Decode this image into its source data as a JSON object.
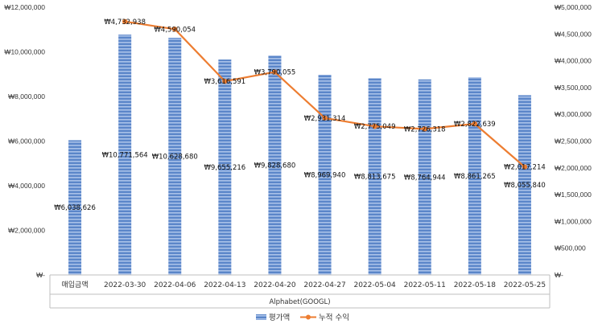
{
  "chart_data": {
    "type": "bar",
    "subtitle": "Alphabet(GOOGL)",
    "categories": [
      "매입금액",
      "2022-03-30",
      "2022-04-06",
      "2022-04-13",
      "2022-04-20",
      "2022-04-27",
      "2022-05-04",
      "2022-05-11",
      "2022-05-18",
      "2022-05-25"
    ],
    "series": [
      {
        "name": "평가액",
        "type": "bar",
        "axis": "left",
        "color": "#5b86c9",
        "values": [
          6038626,
          10771564,
          10628680,
          9655216,
          9828680,
          8969940,
          8813675,
          8764944,
          8861265,
          8055840
        ],
        "labels": [
          "₩6,038,626",
          "₩10,771,564",
          "₩10,628,680",
          "₩9,655,216",
          "₩9,828,680",
          "₩8,969,940",
          "₩8,813,675",
          "₩8,764,944",
          "₩8,861,265",
          "₩8,055,840"
        ]
      },
      {
        "name": "누적 수익",
        "type": "line",
        "axis": "right",
        "color": "#ed7d31",
        "values": [
          null,
          4732938,
          4590054,
          3616591,
          3790055,
          2931314,
          2775049,
          2726318,
          2822639,
          2017214
        ],
        "labels": [
          "",
          "₩4,732,938",
          "₩4,590,054",
          "₩3,616,591",
          "₩3,790,055",
          "₩2,931,314",
          "₩2,775,049",
          "₩2,726,318",
          "₩2,822,639",
          "₩2,017,214"
        ]
      }
    ],
    "y_left": {
      "min": 0,
      "max": 12000000,
      "step": 2000000,
      "tick_labels": [
        "₩-",
        "₩2,000,000",
        "₩4,000,000",
        "₩6,000,000",
        "₩8,000,000",
        "₩10,000,000",
        "₩12,000,000"
      ]
    },
    "y_right": {
      "min": 0,
      "max": 5000000,
      "step": 500000,
      "tick_labels": [
        "₩-",
        "₩500,000",
        "₩1,000,000",
        "₩1,500,000",
        "₩2,000,000",
        "₩2,500,000",
        "₩3,000,000",
        "₩3,500,000",
        "₩4,000,000",
        "₩4,500,000",
        "₩5,000,000"
      ]
    },
    "grid": false,
    "legend": "bottom"
  }
}
